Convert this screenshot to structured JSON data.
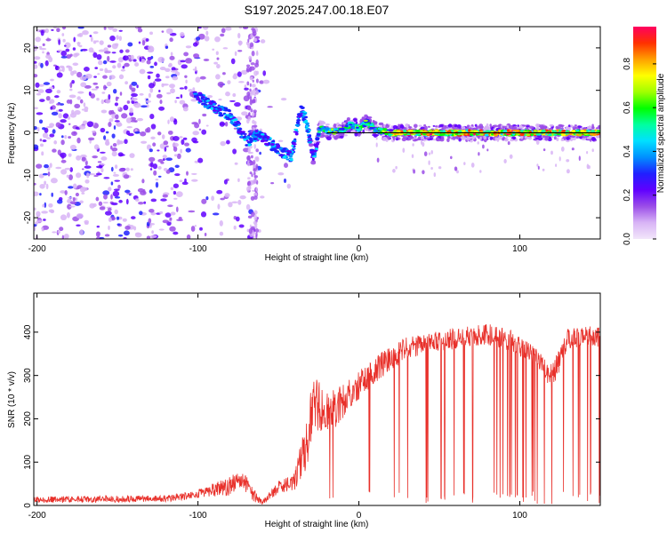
{
  "title": "S197.2025.247.00.18.E07",
  "chart_data": [
    {
      "type": "heatmap",
      "xlabel": "Height of straight line (km)",
      "ylabel": "Frequency (Hz)",
      "xlim": [
        -202,
        150
      ],
      "ylim": [
        -25,
        25
      ],
      "xticks": [
        -200,
        -100,
        0,
        100
      ],
      "yticks": [
        -20,
        -10,
        0,
        10,
        20
      ],
      "colorbar": {
        "label": "Normalized spectral amplitude",
        "range": [
          0,
          0.97
        ],
        "ticks": [
          0.0,
          0.2,
          0.4,
          0.6,
          0.8
        ],
        "colors": [
          "#f2e6fa",
          "#d8b4f6",
          "#9b4de8",
          "#6000ff",
          "#2020ff",
          "#0090ff",
          "#00e0ff",
          "#00ffa0",
          "#00ff00",
          "#a0ff00",
          "#ffff00",
          "#ffa000",
          "#ff3000",
          "#ff0060"
        ]
      },
      "ridge": [
        {
          "x": -100,
          "f": 8.5
        },
        {
          "x": -92,
          "f": 6.5
        },
        {
          "x": -85,
          "f": 5
        },
        {
          "x": -80,
          "f": 4
        },
        {
          "x": -75,
          "f": 1.5
        },
        {
          "x": -70,
          "f": -2
        },
        {
          "x": -62,
          "f": -0.5
        },
        {
          "x": -55,
          "f": -2.5
        },
        {
          "x": -48,
          "f": -4.5
        },
        {
          "x": -42,
          "f": -5.5
        },
        {
          "x": -36,
          "f": 5.5
        },
        {
          "x": -33,
          "f": 3
        },
        {
          "x": -28,
          "f": -6
        },
        {
          "x": -26,
          "f": -2
        },
        {
          "x": -24,
          "f": 1
        },
        {
          "x": -18,
          "f": 0.3
        },
        {
          "x": -10,
          "f": 0.5
        },
        {
          "x": -5,
          "f": 2
        },
        {
          "x": 0,
          "f": 1
        },
        {
          "x": 5,
          "f": 2.5
        },
        {
          "x": 10,
          "f": 0.8
        },
        {
          "x": 20,
          "f": 0
        },
        {
          "x": 60,
          "f": 0
        },
        {
          "x": 100,
          "f": 0
        },
        {
          "x": 150,
          "f": 0
        }
      ]
    },
    {
      "type": "line",
      "xlabel": "Height of straight line (km)",
      "ylabel": "SNR (10 * v/v)",
      "xlim": [
        -202,
        150
      ],
      "ylim": [
        0,
        490
      ],
      "xticks": [
        -200,
        -100,
        0,
        100
      ],
      "yticks": [
        0,
        100,
        200,
        300,
        400
      ],
      "color": "#e8302a",
      "envelope": [
        {
          "x": -202,
          "base": 12,
          "amp": 15
        },
        {
          "x": -120,
          "base": 14,
          "amp": 15
        },
        {
          "x": -100,
          "base": 25,
          "amp": 20
        },
        {
          "x": -80,
          "base": 40,
          "amp": 45
        },
        {
          "x": -72,
          "base": 55,
          "amp": 50
        },
        {
          "x": -65,
          "base": 20,
          "amp": 30
        },
        {
          "x": -60,
          "base": 5,
          "amp": 10
        },
        {
          "x": -50,
          "base": 40,
          "amp": 30
        },
        {
          "x": -40,
          "base": 50,
          "amp": 40
        },
        {
          "x": -32,
          "base": 140,
          "amp": 130
        },
        {
          "x": -28,
          "base": 230,
          "amp": 130
        },
        {
          "x": -20,
          "base": 200,
          "amp": 100
        },
        {
          "x": -10,
          "base": 230,
          "amp": 80
        },
        {
          "x": 0,
          "base": 270,
          "amp": 70
        },
        {
          "x": 15,
          "base": 320,
          "amp": 60
        },
        {
          "x": 30,
          "base": 360,
          "amp": 50
        },
        {
          "x": 60,
          "base": 380,
          "amp": 50
        },
        {
          "x": 80,
          "base": 390,
          "amp": 50
        },
        {
          "x": 95,
          "base": 375,
          "amp": 50
        },
        {
          "x": 110,
          "base": 340,
          "amp": 40
        },
        {
          "x": 120,
          "base": 290,
          "amp": 60
        },
        {
          "x": 130,
          "base": 380,
          "amp": 50
        },
        {
          "x": 150,
          "base": 385,
          "amp": 50
        }
      ]
    }
  ]
}
